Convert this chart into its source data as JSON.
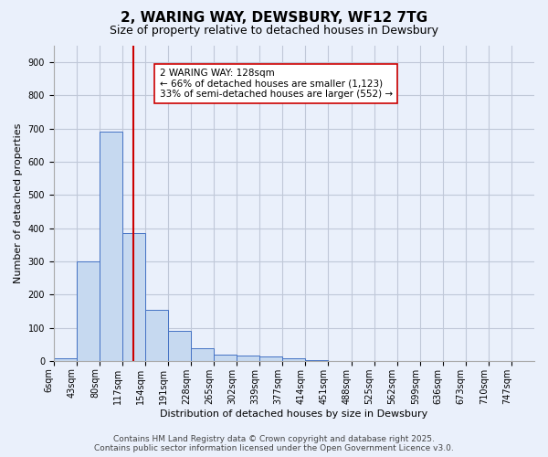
{
  "title": "2, WARING WAY, DEWSBURY, WF12 7TG",
  "subtitle": "Size of property relative to detached houses in Dewsbury",
  "xlabel": "Distribution of detached houses by size in Dewsbury",
  "ylabel": "Number of detached properties",
  "bin_labels": [
    "6sqm",
    "43sqm",
    "80sqm",
    "117sqm",
    "154sqm",
    "191sqm",
    "228sqm",
    "265sqm",
    "302sqm",
    "339sqm",
    "377sqm",
    "414sqm",
    "451sqm",
    "488sqm",
    "525sqm",
    "562sqm",
    "599sqm",
    "636sqm",
    "673sqm",
    "710sqm",
    "747sqm"
  ],
  "bar_values": [
    8,
    300,
    690,
    385,
    155,
    90,
    38,
    18,
    17,
    13,
    8,
    3,
    0,
    0,
    0,
    0,
    0,
    0,
    0,
    0,
    0
  ],
  "bar_color": "#c6d9f0",
  "bar_edgecolor": "#4472c4",
  "vline_x": 3.5,
  "vline_color": "#cc0000",
  "annotation_text": "2 WARING WAY: 128sqm\n← 66% of detached houses are smaller (1,123)\n33% of semi-detached houses are larger (552) →",
  "annotation_box_color": "#ffffff",
  "annotation_box_edgecolor": "#cc0000",
  "ylim": [
    0,
    950
  ],
  "yticks": [
    0,
    100,
    200,
    300,
    400,
    500,
    600,
    700,
    800,
    900
  ],
  "grid_color": "#c0c8d8",
  "background_color": "#eaf0fb",
  "footer_line1": "Contains HM Land Registry data © Crown copyright and database right 2025.",
  "footer_line2": "Contains public sector information licensed under the Open Government Licence v3.0.",
  "title_fontsize": 11,
  "subtitle_fontsize": 9,
  "axis_label_fontsize": 8,
  "tick_fontsize": 7,
  "annotation_fontsize": 7.5,
  "footer_fontsize": 6.5
}
